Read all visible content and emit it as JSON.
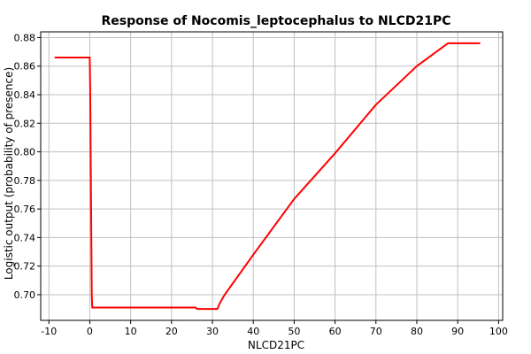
{
  "chart_data": {
    "type": "line",
    "title": "Response of Nocomis_leptocephalus to NLCD21PC",
    "xlabel": "NLCD21PC",
    "ylabel": "Logistic output (probability of presence)",
    "xlim": [
      -12,
      101
    ],
    "ylim": [
      0.682,
      0.884
    ],
    "xticks": [
      -10,
      0,
      10,
      20,
      30,
      40,
      50,
      60,
      70,
      80,
      90,
      100
    ],
    "xtick_labels": [
      "-10",
      "0",
      "10",
      "20",
      "30",
      "40",
      "50",
      "60",
      "70",
      "80",
      "90",
      "100"
    ],
    "yticks": [
      0.7,
      0.72,
      0.74,
      0.76,
      0.78,
      0.8,
      0.82,
      0.84,
      0.86,
      0.88
    ],
    "ytick_labels": [
      "0.70",
      "0.72",
      "0.74",
      "0.76",
      "0.78",
      "0.80",
      "0.82",
      "0.84",
      "0.86",
      "0.88"
    ],
    "grid": true,
    "series": [
      {
        "color": "#ff0000",
        "x": [
          -8.6,
          0.0,
          0.1,
          0.5,
          0.6,
          25.9,
          26.3,
          31.2,
          31.8,
          33.0,
          40.0,
          50.0,
          60.0,
          70.0,
          80.0,
          87.6,
          95.5
        ],
        "y": [
          0.866,
          0.866,
          0.845,
          0.7,
          0.691,
          0.691,
          0.69,
          0.69,
          0.694,
          0.7,
          0.728,
          0.767,
          0.799,
          0.833,
          0.86,
          0.876,
          0.876
        ]
      }
    ]
  }
}
